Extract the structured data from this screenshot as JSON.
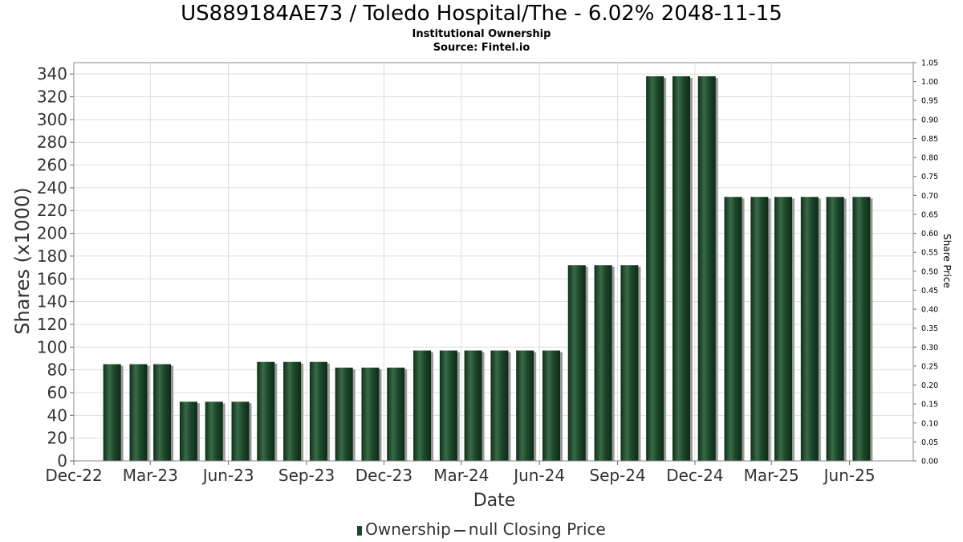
{
  "chart_data": {
    "type": "bar",
    "title": "US889184AE73 / Toledo Hospital/The - 6.02% 2048-11-15",
    "subtitle": "Institutional Ownership",
    "source": "Source: Fintel.io",
    "xlabel": "Date",
    "ylabel": "Shares (x1000)",
    "y2label": "Share Price",
    "ylim": [
      0,
      350
    ],
    "y2lim": [
      0,
      1.05
    ],
    "yticks": [
      "0",
      "20",
      "40",
      "60",
      "80",
      "100",
      "120",
      "140",
      "160",
      "180",
      "200",
      "220",
      "240",
      "260",
      "280",
      "300",
      "320",
      "340"
    ],
    "y2ticks": [
      "0.00",
      "0.05",
      "0.10",
      "0.15",
      "0.20",
      "0.25",
      "0.30",
      "0.35",
      "0.40",
      "0.45",
      "0.50",
      "0.55",
      "0.60",
      "0.65",
      "0.70",
      "0.75",
      "0.80",
      "0.85",
      "0.90",
      "0.95",
      "1.00",
      "1.05"
    ],
    "xticks": [
      "Dec-22",
      "Mar-23",
      "Jun-23",
      "Sep-23",
      "Dec-23",
      "Mar-24",
      "Jun-24",
      "Sep-24",
      "Dec-24",
      "Mar-25",
      "Jun-25"
    ],
    "x": [
      "2023-01-15",
      "2023-02-15",
      "2023-03-15",
      "2023-04-15",
      "2023-05-15",
      "2023-06-15",
      "2023-07-15",
      "2023-08-15",
      "2023-09-15",
      "2023-10-15",
      "2023-11-15",
      "2023-12-15",
      "2024-01-15",
      "2024-02-15",
      "2024-03-15",
      "2024-04-15",
      "2024-05-15",
      "2024-06-15",
      "2024-07-15",
      "2024-08-15",
      "2024-09-15",
      "2024-10-15",
      "2024-11-15",
      "2024-12-15",
      "2025-01-15",
      "2025-02-15",
      "2025-03-15",
      "2025-04-15",
      "2025-05-15",
      "2025-06-15"
    ],
    "series": [
      {
        "name": "Ownership",
        "color": "#1d4a2b",
        "values": [
          85,
          85,
          85,
          52,
          52,
          52,
          87,
          87,
          87,
          82,
          82,
          82,
          97,
          97,
          97,
          97,
          97,
          97,
          172,
          172,
          172,
          338,
          338,
          338,
          232,
          232,
          232,
          232,
          232,
          232
        ]
      }
    ],
    "legend": {
      "placement": "bottom",
      "items": [
        {
          "name": "Ownership",
          "marker": "bar"
        },
        {
          "name": "null Closing Price",
          "marker": "line"
        }
      ]
    },
    "grid": true
  }
}
